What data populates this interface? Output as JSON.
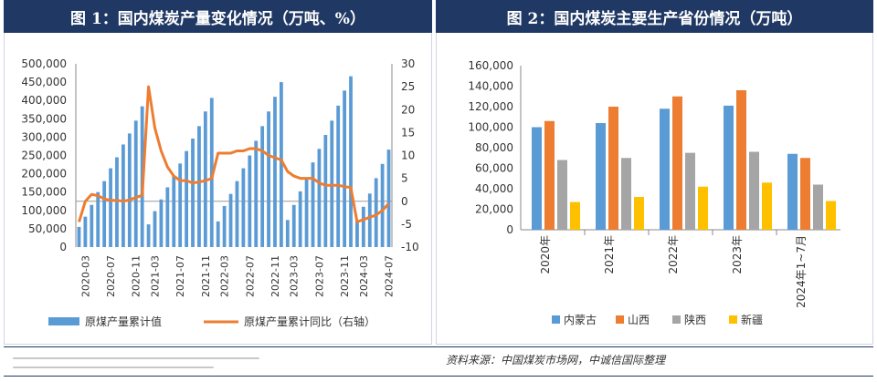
{
  "left_panel": {
    "title": "图 1：国内煤炭产量变化情况（万吨、%）"
  },
  "right_panel": {
    "title": "图 2：国内煤炭主要生产省份情况（万吨）"
  },
  "source_note": "资料来源：中国煤炭市场网，中诚信国际整理",
  "colors": {
    "title_bg": "#1f3864",
    "bar_blue": "#5b9bd5",
    "line_orange": "#ed7d31",
    "gray": "#a5a5a5",
    "yellow": "#ffc000"
  },
  "chart_data": [
    {
      "type": "bar",
      "combo": "bar-line-dual-axis",
      "categories": [
        "2020-02",
        "2020-03",
        "2020-04",
        "2020-05",
        "2020-06",
        "2020-07",
        "2020-08",
        "2020-09",
        "2020-10",
        "2020-11",
        "2020-12",
        "2021-02",
        "2021-03",
        "2021-04",
        "2021-05",
        "2021-06",
        "2021-07",
        "2021-08",
        "2021-09",
        "2021-10",
        "2021-11",
        "2021-12",
        "2022-02",
        "2022-03",
        "2022-04",
        "2022-05",
        "2022-06",
        "2022-07",
        "2022-08",
        "2022-09",
        "2022-10",
        "2022-11",
        "2022-12",
        "2023-02",
        "2023-03",
        "2023-04",
        "2023-05",
        "2023-06",
        "2023-07",
        "2023-08",
        "2023-09",
        "2023-10",
        "2023-11",
        "2023-12",
        "2024-02",
        "2024-03",
        "2024-04",
        "2024-05",
        "2024-06",
        "2024-07"
      ],
      "tick_labels": [
        "2020-03",
        "2020-07",
        "2020-11",
        "2021-03",
        "2021-07",
        "2021-11",
        "2022-03",
        "2022-07",
        "2022-11",
        "2023-03",
        "2023-07",
        "2023-11",
        "2024-03",
        "2024-07"
      ],
      "series": [
        {
          "name": "原煤产量累计值",
          "axis": "left",
          "values": [
            55000,
            83000,
            115000,
            150000,
            180000,
            215000,
            245000,
            280000,
            310000,
            345000,
            384000,
            62000,
            98000,
            130000,
            163000,
            195000,
            228000,
            262000,
            296000,
            330000,
            370000,
            407000,
            70000,
            112000,
            145000,
            180000,
            215000,
            250000,
            290000,
            330000,
            370000,
            410000,
            450000,
            74000,
            115000,
            152000,
            190000,
            231000,
            268000,
            306000,
            345000,
            386000,
            427000,
            466000,
            73000,
            110000,
            146000,
            188000,
            227000,
            266000
          ]
        },
        {
          "name": "原煤产量累计同比（右轴）",
          "axis": "right",
          "values": [
            -4.5,
            0.0,
            1.5,
            1.2,
            0.5,
            0.2,
            0.2,
            0.0,
            0.3,
            0.8,
            1.3,
            25.0,
            16.0,
            11.0,
            7.5,
            5.5,
            4.5,
            4.5,
            4.0,
            4.2,
            4.5,
            5.0,
            10.5,
            10.5,
            10.5,
            11.0,
            11.0,
            11.5,
            11.5,
            11.0,
            10.0,
            9.5,
            9.0,
            6.5,
            5.5,
            5.0,
            5.0,
            5.0,
            4.0,
            3.5,
            3.5,
            3.5,
            3.2,
            3.0,
            -4.5,
            -4.0,
            -3.5,
            -3.0,
            -2.0,
            -0.5
          ]
        }
      ],
      "ylim_left": [
        0,
        500000
      ],
      "ylim_right": [
        -10,
        30
      ],
      "left_ticks": [
        "0",
        "50,000",
        "100,000",
        "150,000",
        "200,000",
        "250,000",
        "300,000",
        "350,000",
        "400,000",
        "450,000",
        "500,000"
      ],
      "right_ticks": [
        "-10",
        "-5",
        "0",
        "5",
        "10",
        "15",
        "20",
        "25",
        "30"
      ],
      "legend": [
        "原煤产量累计值",
        "原煤产量累计同比（右轴）"
      ]
    },
    {
      "type": "bar",
      "categories": [
        "2020年",
        "2021年",
        "2022年",
        "2023年",
        "2024年1~7月"
      ],
      "series": [
        {
          "name": "内蒙古",
          "values": [
            100000,
            104000,
            118000,
            121000,
            74000
          ]
        },
        {
          "name": "山西",
          "values": [
            106000,
            120000,
            130000,
            136000,
            70000
          ]
        },
        {
          "name": "陕西",
          "values": [
            68000,
            70000,
            75000,
            76000,
            44000
          ]
        },
        {
          "name": "新疆",
          "values": [
            27000,
            32000,
            42000,
            46000,
            28000
          ]
        }
      ],
      "ylim": [
        0,
        160000
      ],
      "ticks": [
        "0",
        "20,000",
        "40,000",
        "60,000",
        "80,000",
        "100,000",
        "120,000",
        "140,000",
        "160,000"
      ],
      "legend": [
        "内蒙古",
        "山西",
        "陕西",
        "新疆"
      ]
    }
  ]
}
